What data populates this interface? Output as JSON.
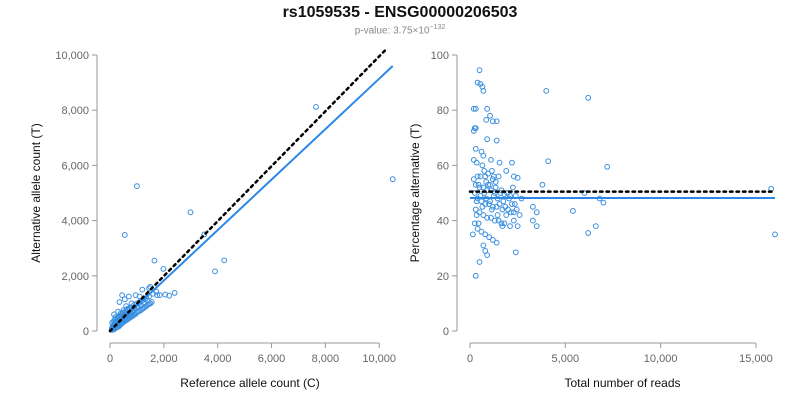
{
  "title": "rs1059535 - ENSG00000206503",
  "subtitle": {
    "prefix": "p-value: 3.75×10",
    "exponent": "−132"
  },
  "colors": {
    "points": "#3a8fe0",
    "fit_line": "#2b88e8",
    "reference_line": "#000000",
    "axis": "#999999"
  },
  "chart_data": [
    {
      "type": "scatter",
      "xlabel": "Reference allele count (C)",
      "ylabel": "Alternative allele count (T)",
      "xlim": [
        0,
        10400
      ],
      "ylim": [
        0,
        10000
      ],
      "xticks": [
        0,
        2000,
        4000,
        6000,
        8000,
        10000
      ],
      "xtick_labels": [
        "0",
        "2,000",
        "4,000",
        "6,000",
        "8,000",
        "10,000"
      ],
      "yticks": [
        0,
        2000,
        4000,
        6000,
        8000,
        10000
      ],
      "ytick_labels": [
        "0",
        "2,000",
        "4,000",
        "6,000",
        "8,000",
        "10,000"
      ],
      "grid": false,
      "lines": [
        {
          "kind": "fit",
          "style": "solid",
          "points": [
            [
              0,
              0
            ],
            [
              10500,
              9600
            ]
          ]
        },
        {
          "kind": "reference",
          "style": "dotted",
          "points": [
            [
              0,
              0
            ],
            [
              10500,
              10450
            ]
          ]
        }
      ],
      "points": [
        [
          1000,
          5250
        ],
        [
          550,
          3480
        ],
        [
          2990,
          4300
        ],
        [
          3500,
          3500
        ],
        [
          3900,
          2160
        ],
        [
          4240,
          2560
        ],
        [
          10500,
          5500
        ],
        [
          7650,
          8120
        ],
        [
          1650,
          2550
        ],
        [
          1980,
          2250
        ],
        [
          2400,
          1380
        ],
        [
          1720,
          1420
        ],
        [
          1450,
          1550
        ],
        [
          1200,
          1500
        ],
        [
          1850,
          1300
        ],
        [
          2050,
          1320
        ],
        [
          2200,
          1280
        ],
        [
          1500,
          1600
        ],
        [
          950,
          1300
        ],
        [
          700,
          1250
        ],
        [
          450,
          1300
        ],
        [
          350,
          1050
        ],
        [
          550,
          1150
        ],
        [
          1100,
          1250
        ],
        [
          1300,
          1150
        ],
        [
          150,
          600
        ],
        [
          200,
          500
        ],
        [
          300,
          700
        ],
        [
          400,
          650
        ],
        [
          500,
          750
        ],
        [
          600,
          900
        ],
        [
          650,
          800
        ],
        [
          800,
          1000
        ],
        [
          900,
          950
        ],
        [
          1000,
          1000
        ],
        [
          1100,
          1050
        ],
        [
          1200,
          1100
        ],
        [
          1350,
          1200
        ],
        [
          1550,
          1050
        ],
        [
          1450,
          1250
        ],
        [
          1600,
          1350
        ],
        [
          1750,
          1300
        ],
        [
          100,
          100
        ],
        [
          150,
          150
        ],
        [
          200,
          200
        ],
        [
          250,
          250
        ],
        [
          300,
          300
        ],
        [
          350,
          350
        ],
        [
          120,
          50
        ],
        [
          180,
          80
        ],
        [
          220,
          120
        ],
        [
          260,
          140
        ],
        [
          300,
          150
        ],
        [
          340,
          180
        ],
        [
          380,
          220
        ],
        [
          420,
          260
        ],
        [
          460,
          300
        ],
        [
          500,
          320
        ],
        [
          540,
          360
        ],
        [
          580,
          380
        ],
        [
          620,
          400
        ],
        [
          660,
          430
        ],
        [
          700,
          460
        ],
        [
          740,
          480
        ],
        [
          780,
          520
        ],
        [
          820,
          540
        ],
        [
          860,
          560
        ],
        [
          900,
          600
        ],
        [
          950,
          620
        ],
        [
          1000,
          680
        ],
        [
          1050,
          700
        ],
        [
          1100,
          730
        ],
        [
          1150,
          760
        ],
        [
          1200,
          800
        ],
        [
          1250,
          830
        ],
        [
          1300,
          870
        ],
        [
          1350,
          900
        ],
        [
          1400,
          950
        ],
        [
          1450,
          980
        ],
        [
          1500,
          1000
        ],
        [
          80,
          300
        ],
        [
          130,
          350
        ],
        [
          180,
          400
        ],
        [
          230,
          420
        ],
        [
          280,
          480
        ],
        [
          330,
          520
        ],
        [
          380,
          560
        ],
        [
          430,
          600
        ],
        [
          480,
          640
        ],
        [
          530,
          680
        ],
        [
          580,
          720
        ],
        [
          630,
          760
        ],
        [
          680,
          800
        ],
        [
          730,
          820
        ],
        [
          780,
          860
        ],
        [
          130,
          200
        ],
        [
          170,
          230
        ],
        [
          210,
          260
        ],
        [
          250,
          290
        ],
        [
          290,
          320
        ],
        [
          90,
          150
        ],
        [
          110,
          180
        ],
        [
          160,
          260
        ],
        [
          240,
          330
        ],
        [
          320,
          410
        ],
        [
          360,
          470
        ],
        [
          440,
          520
        ],
        [
          520,
          560
        ],
        [
          600,
          600
        ],
        [
          680,
          650
        ],
        [
          760,
          700
        ],
        [
          840,
          760
        ],
        [
          920,
          820
        ],
        [
          1000,
          880
        ],
        [
          60,
          40
        ],
        [
          70,
          80
        ],
        [
          140,
          110
        ],
        [
          190,
          170
        ],
        [
          270,
          210
        ],
        [
          310,
          260
        ],
        [
          400,
          380
        ],
        [
          470,
          420
        ],
        [
          560,
          480
        ],
        [
          640,
          540
        ],
        [
          720,
          580
        ],
        [
          850,
          680
        ],
        [
          1150,
          920
        ],
        [
          1250,
          1000
        ],
        [
          1400,
          1100
        ],
        [
          1050,
          850
        ]
      ]
    },
    {
      "type": "scatter",
      "xlabel": "Total number of reads",
      "ylabel": "Percentage alternative (T)",
      "xlim": [
        0,
        16000
      ],
      "ylim": [
        0,
        100
      ],
      "xticks": [
        0,
        5000,
        10000,
        15000
      ],
      "xtick_labels": [
        "0",
        "5,000",
        "10,000",
        "15,000"
      ],
      "yticks": [
        0,
        20,
        40,
        60,
        80,
        100
      ],
      "ytick_labels": [
        "0",
        "20",
        "40",
        "60",
        "80",
        "100"
      ],
      "grid": false,
      "lines": [
        {
          "kind": "fit",
          "style": "solid",
          "points": [
            [
              0,
              48.2
            ],
            [
              16000,
              48.2
            ]
          ]
        },
        {
          "kind": "reference",
          "style": "dotted",
          "points": [
            [
              0,
              50.5
            ],
            [
              16000,
              50.5
            ]
          ]
        }
      ],
      "points": [
        [
          500,
          94.5
        ],
        [
          400,
          90
        ],
        [
          550,
          89.5
        ],
        [
          650,
          88.5
        ],
        [
          700,
          87
        ],
        [
          4000,
          87
        ],
        [
          6200,
          84.5
        ],
        [
          300,
          80.5
        ],
        [
          200,
          80.5
        ],
        [
          900,
          80.5
        ],
        [
          1050,
          78
        ],
        [
          850,
          76.5
        ],
        [
          1200,
          76
        ],
        [
          1400,
          76
        ],
        [
          300,
          73.5
        ],
        [
          250,
          73.5
        ],
        [
          200,
          72.5
        ],
        [
          900,
          69.5
        ],
        [
          1400,
          69
        ],
        [
          600,
          65
        ],
        [
          700,
          63.5
        ],
        [
          300,
          66
        ],
        [
          350,
          61
        ],
        [
          200,
          62
        ],
        [
          1100,
          62
        ],
        [
          1550,
          61
        ],
        [
          2200,
          61
        ],
        [
          4100,
          61.5
        ],
        [
          7200,
          59.5
        ],
        [
          1900,
          58
        ],
        [
          400,
          56
        ],
        [
          800,
          56
        ],
        [
          1200,
          55
        ],
        [
          1500,
          56
        ],
        [
          2300,
          56
        ],
        [
          2500,
          55.5
        ],
        [
          3800,
          53
        ],
        [
          300,
          53
        ],
        [
          500,
          52
        ],
        [
          700,
          52
        ],
        [
          900,
          51
        ],
        [
          1100,
          51
        ],
        [
          1300,
          50
        ],
        [
          1600,
          50
        ],
        [
          1800,
          49.5
        ],
        [
          2100,
          49
        ],
        [
          2400,
          49
        ],
        [
          2700,
          48
        ],
        [
          400,
          48
        ],
        [
          600,
          47
        ],
        [
          800,
          46
        ],
        [
          1000,
          46
        ],
        [
          1200,
          45
        ],
        [
          1400,
          45
        ],
        [
          1700,
          44
        ],
        [
          2000,
          44
        ],
        [
          2300,
          43
        ],
        [
          3300,
          45
        ],
        [
          3500,
          43
        ],
        [
          300,
          44
        ],
        [
          500,
          43
        ],
        [
          700,
          42
        ],
        [
          900,
          41
        ],
        [
          1100,
          41
        ],
        [
          1300,
          40
        ],
        [
          1500,
          40
        ],
        [
          1800,
          39
        ],
        [
          2100,
          38
        ],
        [
          2500,
          38
        ],
        [
          3500,
          38
        ],
        [
          5400,
          43.5
        ],
        [
          6000,
          50
        ],
        [
          6600,
          38
        ],
        [
          6200,
          35.5
        ],
        [
          7000,
          46.5
        ],
        [
          6800,
          48
        ],
        [
          15800,
          51.5
        ],
        [
          16000,
          35
        ],
        [
          400,
          37
        ],
        [
          600,
          36
        ],
        [
          800,
          35
        ],
        [
          1000,
          34
        ],
        [
          1200,
          33
        ],
        [
          1400,
          32
        ],
        [
          700,
          31
        ],
        [
          800,
          29
        ],
        [
          900,
          27.5
        ],
        [
          500,
          25
        ],
        [
          300,
          20
        ],
        [
          2400,
          28.5
        ],
        [
          2300,
          40
        ],
        [
          1700,
          38
        ],
        [
          1900,
          42
        ],
        [
          2200,
          46
        ],
        [
          3300,
          40
        ],
        [
          200,
          55
        ],
        [
          250,
          50
        ],
        [
          350,
          47
        ],
        [
          450,
          53
        ],
        [
          550,
          49
        ],
        [
          650,
          45
        ],
        [
          750,
          50
        ],
        [
          850,
          48
        ],
        [
          950,
          53
        ],
        [
          1050,
          47
        ],
        [
          1150,
          44
        ],
        [
          1250,
          49
        ],
        [
          1350,
          52
        ],
        [
          1450,
          48
        ],
        [
          1550,
          46
        ],
        [
          1650,
          51
        ],
        [
          1750,
          47
        ],
        [
          1850,
          45
        ],
        [
          1950,
          50
        ],
        [
          2050,
          48
        ],
        [
          2150,
          43
        ],
        [
          2250,
          52
        ],
        [
          2350,
          46
        ],
        [
          2450,
          44
        ],
        [
          2600,
          42
        ],
        [
          150,
          35
        ],
        [
          250,
          39
        ],
        [
          350,
          42
        ],
        [
          450,
          39
        ],
        [
          550,
          56
        ],
        [
          650,
          60
        ],
        [
          750,
          58
        ],
        [
          850,
          54
        ],
        [
          950,
          57
        ],
        [
          1050,
          53
        ],
        [
          1150,
          58
        ],
        [
          1250,
          56
        ],
        [
          1350,
          54
        ],
        [
          1450,
          42
        ],
        [
          1650,
          39
        ]
      ]
    }
  ]
}
